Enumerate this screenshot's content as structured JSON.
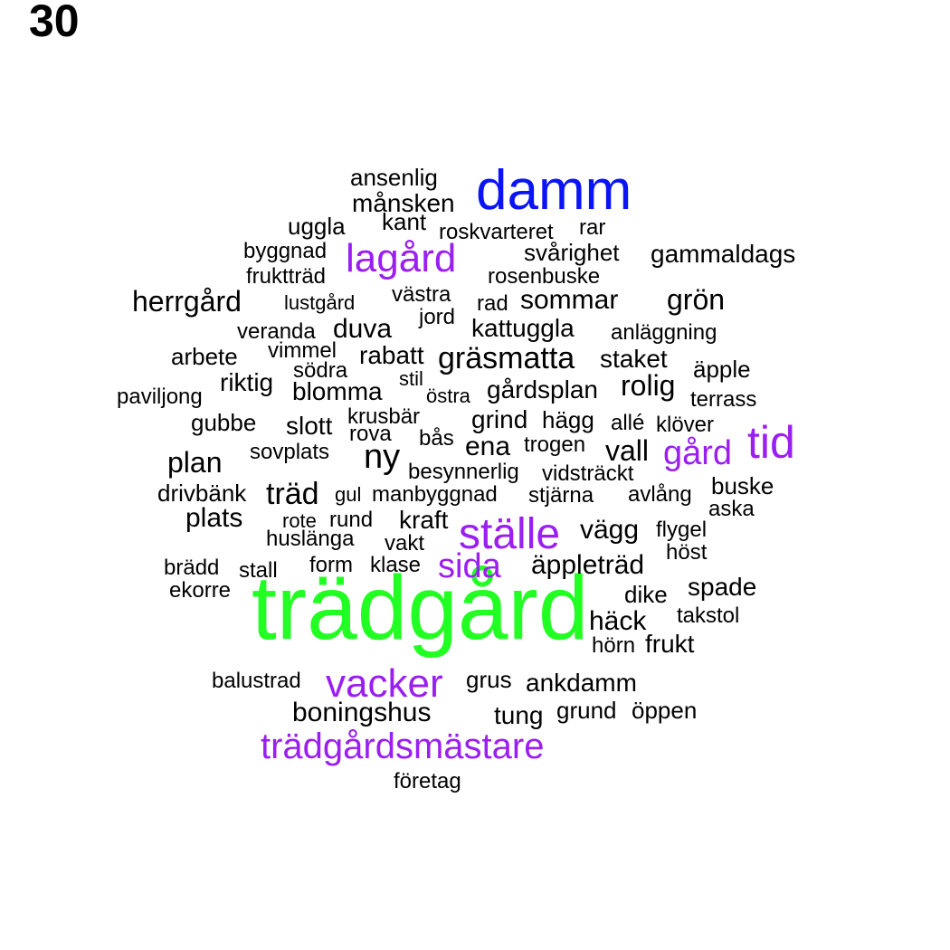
{
  "page_number": "30",
  "colors": {
    "green": "#22ff22",
    "blue": "#0a14f5",
    "purple": "#9a1ff0",
    "black": "#000000"
  },
  "words": [
    {
      "text": "trädgård",
      "color": "green"
    },
    {
      "text": "damm",
      "color": "blue"
    },
    {
      "text": "lagård",
      "color": "purple"
    },
    {
      "text": "tid",
      "color": "purple"
    },
    {
      "text": "gård",
      "color": "purple"
    },
    {
      "text": "ställe",
      "color": "purple"
    },
    {
      "text": "sida",
      "color": "purple"
    },
    {
      "text": "vacker",
      "color": "purple"
    },
    {
      "text": "trädgårdsmästare",
      "color": "purple"
    },
    {
      "text": "ansenlig",
      "color": "black"
    },
    {
      "text": "månsken",
      "color": "black"
    },
    {
      "text": "uggla",
      "color": "black"
    },
    {
      "text": "kant",
      "color": "black"
    },
    {
      "text": "roskvarteret",
      "color": "black"
    },
    {
      "text": "rar",
      "color": "black"
    },
    {
      "text": "byggnad",
      "color": "black"
    },
    {
      "text": "svårighet",
      "color": "black"
    },
    {
      "text": "gammaldags",
      "color": "black"
    },
    {
      "text": "fruktträd",
      "color": "black"
    },
    {
      "text": "rosenbuske",
      "color": "black"
    },
    {
      "text": "herrgård",
      "color": "black"
    },
    {
      "text": "lustgård",
      "color": "black"
    },
    {
      "text": "västra",
      "color": "black"
    },
    {
      "text": "rad",
      "color": "black"
    },
    {
      "text": "sommar",
      "color": "black"
    },
    {
      "text": "grön",
      "color": "black"
    },
    {
      "text": "jord",
      "color": "black"
    },
    {
      "text": "veranda",
      "color": "black"
    },
    {
      "text": "duva",
      "color": "black"
    },
    {
      "text": "kattuggla",
      "color": "black"
    },
    {
      "text": "anläggning",
      "color": "black"
    },
    {
      "text": "arbete",
      "color": "black"
    },
    {
      "text": "vimmel",
      "color": "black"
    },
    {
      "text": "rabatt",
      "color": "black"
    },
    {
      "text": "gräsmatta",
      "color": "black"
    },
    {
      "text": "staket",
      "color": "black"
    },
    {
      "text": "äpple",
      "color": "black"
    },
    {
      "text": "södra",
      "color": "black"
    },
    {
      "text": "riktig",
      "color": "black"
    },
    {
      "text": "stil",
      "color": "black"
    },
    {
      "text": "rolig",
      "color": "black"
    },
    {
      "text": "paviljong",
      "color": "black"
    },
    {
      "text": "blomma",
      "color": "black"
    },
    {
      "text": "östra",
      "color": "black"
    },
    {
      "text": "gårdsplan",
      "color": "black"
    },
    {
      "text": "terrass",
      "color": "black"
    },
    {
      "text": "krusbär",
      "color": "black"
    },
    {
      "text": "grind",
      "color": "black"
    },
    {
      "text": "hägg",
      "color": "black"
    },
    {
      "text": "allé",
      "color": "black"
    },
    {
      "text": "klöver",
      "color": "black"
    },
    {
      "text": "gubbe",
      "color": "black"
    },
    {
      "text": "slott",
      "color": "black"
    },
    {
      "text": "rova",
      "color": "black"
    },
    {
      "text": "bås",
      "color": "black"
    },
    {
      "text": "ena",
      "color": "black"
    },
    {
      "text": "trogen",
      "color": "black"
    },
    {
      "text": "vall",
      "color": "black"
    },
    {
      "text": "sovplats",
      "color": "black"
    },
    {
      "text": "ny",
      "color": "black"
    },
    {
      "text": "plan",
      "color": "black"
    },
    {
      "text": "besynnerlig",
      "color": "black"
    },
    {
      "text": "vidsträckt",
      "color": "black"
    },
    {
      "text": "drivbänk",
      "color": "black"
    },
    {
      "text": "träd",
      "color": "black"
    },
    {
      "text": "gul",
      "color": "black"
    },
    {
      "text": "manbyggnad",
      "color": "black"
    },
    {
      "text": "stjärna",
      "color": "black"
    },
    {
      "text": "avlång",
      "color": "black"
    },
    {
      "text": "buske",
      "color": "black"
    },
    {
      "text": "plats",
      "color": "black"
    },
    {
      "text": "rote",
      "color": "black"
    },
    {
      "text": "rund",
      "color": "black"
    },
    {
      "text": "kraft",
      "color": "black"
    },
    {
      "text": "aska",
      "color": "black"
    },
    {
      "text": "vägg",
      "color": "black"
    },
    {
      "text": "flygel",
      "color": "black"
    },
    {
      "text": "huslänga",
      "color": "black"
    },
    {
      "text": "vakt",
      "color": "black"
    },
    {
      "text": "höst",
      "color": "black"
    },
    {
      "text": "brädd",
      "color": "black"
    },
    {
      "text": "stall",
      "color": "black"
    },
    {
      "text": "form",
      "color": "black"
    },
    {
      "text": "klase",
      "color": "black"
    },
    {
      "text": "äppleträd",
      "color": "black"
    },
    {
      "text": "spade",
      "color": "black"
    },
    {
      "text": "ekorre",
      "color": "black"
    },
    {
      "text": "dike",
      "color": "black"
    },
    {
      "text": "takstol",
      "color": "black"
    },
    {
      "text": "häck",
      "color": "black"
    },
    {
      "text": "hörn",
      "color": "black"
    },
    {
      "text": "frukt",
      "color": "black"
    },
    {
      "text": "balustrad",
      "color": "black"
    },
    {
      "text": "grus",
      "color": "black"
    },
    {
      "text": "ankdamm",
      "color": "black"
    },
    {
      "text": "boningshus",
      "color": "black"
    },
    {
      "text": "tung",
      "color": "black"
    },
    {
      "text": "grund",
      "color": "black"
    },
    {
      "text": "öppen",
      "color": "black"
    },
    {
      "text": "företag",
      "color": "black"
    }
  ]
}
